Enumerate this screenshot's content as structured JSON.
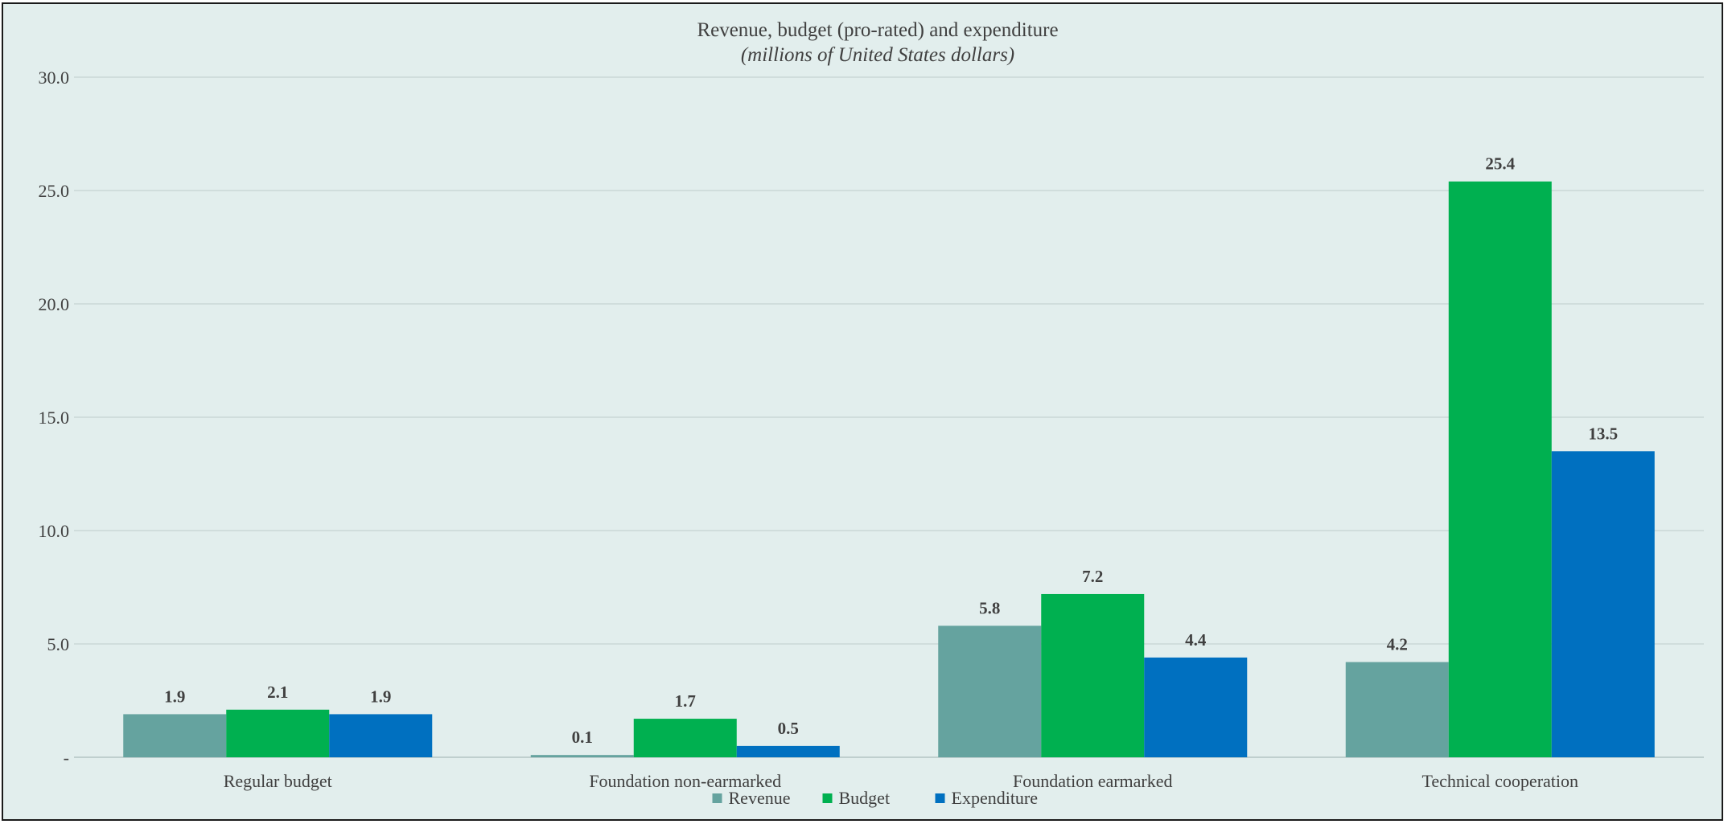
{
  "chart_data": {
    "type": "bar",
    "title": "Revenue, budget (pro-rated) and expenditure",
    "subtitle": "(millions of United States dollars)",
    "categories": [
      "Regular budget",
      "Foundation non-earmarked",
      "Foundation earmarked",
      "Technical cooperation"
    ],
    "series": [
      {
        "name": "Revenue",
        "values": [
          1.9,
          0.1,
          5.8,
          4.2
        ],
        "color": "#65a39f"
      },
      {
        "name": "Budget",
        "values": [
          2.1,
          1.7,
          7.2,
          25.4
        ],
        "color": "#00b050"
      },
      {
        "name": "Expenditure",
        "values": [
          1.9,
          0.5,
          4.4,
          13.5
        ],
        "color": "#0070c0"
      }
    ],
    "value_labels": [
      [
        "1.9",
        "0.1",
        "5.8",
        "4.2"
      ],
      [
        "2.1",
        "1.7",
        "7.2",
        "25.4"
      ],
      [
        "1.9",
        "0.5",
        "4.4",
        "13.5"
      ]
    ],
    "yticks": [
      0,
      5,
      10,
      15,
      20,
      25,
      30
    ],
    "ytick_labels": [
      "-",
      "5.0",
      "10.0",
      "15.0",
      "20.0",
      "25.0",
      "30.0"
    ],
    "ylim": [
      0,
      30
    ],
    "grid": true,
    "legend_position": "bottom"
  }
}
